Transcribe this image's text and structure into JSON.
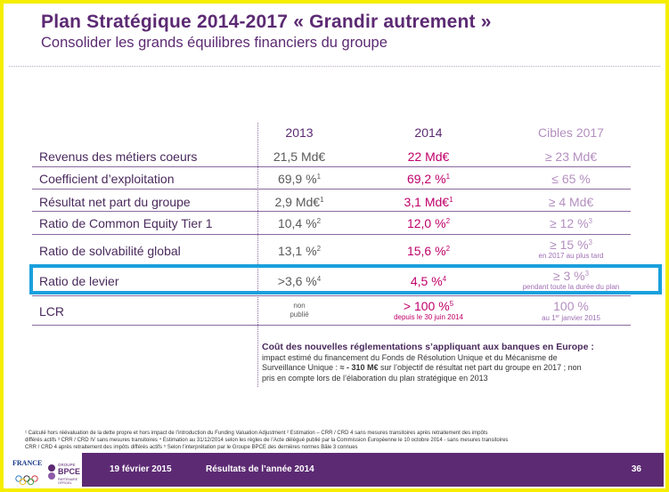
{
  "header": {
    "title": "Plan Stratégique 2014-2017 « Grandir autrement »",
    "subtitle": "Consolider les grands équilibres financiers du groupe"
  },
  "table": {
    "columns": [
      "2013",
      "2014",
      "Cibles 2017"
    ],
    "rows": [
      {
        "label": "Revenus des métiers coeurs",
        "v2013": "21,5 Md€",
        "v2014": "22 Md€",
        "target": "≥ 23 Md€"
      },
      {
        "label": "Coefficient d’exploitation",
        "v2013": "69,9 %",
        "v2013_sup": "1",
        "v2014": "69,2 %",
        "v2014_sup": "1",
        "target": "≤ 65 %"
      },
      {
        "label": "Résultat net part du groupe",
        "v2013": "2,9 Md€",
        "v2013_sup": "1",
        "v2014": "3,1 Md€",
        "v2014_sup": "1",
        "target": "≥ 4 Md€"
      },
      {
        "label": "Ratio de Common Equity Tier 1",
        "v2013": "10,4 %",
        "v2013_sup": "2",
        "v2014": "12,0 %",
        "v2014_sup": "2",
        "target": "≥ 12 %",
        "target_sup": "3"
      },
      {
        "label": "Ratio de solvabilité global",
        "v2013": "13,1 %",
        "v2013_sup": "2",
        "v2014": "15,6 %",
        "v2014_sup": "2",
        "target": "≥ 15 %",
        "target_sup": "3",
        "target_note": "en 2017 au plus tard"
      },
      {
        "label": "Ratio de levier",
        "v2013": ">3,6 %",
        "v2013_sup": "4",
        "v2014": "4,5 %",
        "v2014_sup": "4",
        "target": "≥ 3 %",
        "target_sup": "3",
        "target_note": "pendant toute la durée du plan"
      },
      {
        "label": "LCR",
        "v2013_line1": "non",
        "v2013_line2": "publié",
        "v2014": "> 100 %",
        "v2014_sup": "5",
        "v2014_note": "depuis le 30 juin 2014",
        "target": "100 %",
        "target_note_pre": "au 1",
        "target_note_sup": "er",
        "target_note_post": " janvier 2015"
      }
    ]
  },
  "note": {
    "lead": "Coût des nouvelles réglementations s’appliquant aux banques en Europe :",
    "line1": "impact estimé du financement du Fonds de Résolution Unique  et du Mécanisme de",
    "line2_pre": "Surveillance Unique : ",
    "line2_bold": "≈ - 310 M€",
    "line2_post": " sur l’objectif de résultat net part du groupe en 2017 ; non",
    "line3": "pris en compte lors de l’élaboration du plan stratégique en 2013"
  },
  "footnotes": {
    "line1": "¹ Calculé hors réévaluation de la dette propre et hors impact de l’introduction du Funding Valuation Adjustment  ² Estimation – CRR / CRD 4 sans mesures transitoires après retraitement des impôts",
    "line2": "différés actifs  ³ CRR / CRD IV sans mesures transitoires ⁴ Estimation au 31/12/2014 selon les règles de l’Acte délégué publié par la Commission Européenne le 10 octobre 2014 - sans mesures transitoires",
    "line3": "CRR / CRD 4 après retraitement des impôts différés actifs  ⁵ Selon l’interprétation par le Groupe BPCE des dernières normes Bâle 3 connues"
  },
  "footer": {
    "date": "19 février 2015",
    "section": "Résultats de l’année 2014",
    "page": "36"
  },
  "logos": {
    "france_line1": "FRANCE",
    "bpce_group": "GROUPE",
    "bpce_name": "BPCE",
    "bpce_partner": "PARTENAIRE OFFICIEL"
  },
  "colors": {
    "primary": "#5c2a73",
    "accent_2014": "#c0006a",
    "target": "#b48fc0",
    "highlight_box": "#1aa0dc",
    "frame": "#f5ee00"
  }
}
